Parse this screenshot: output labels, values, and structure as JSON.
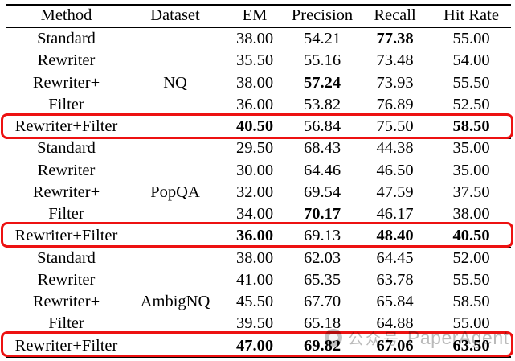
{
  "table": {
    "columns": [
      "Method",
      "Dataset",
      "EM",
      "Precision",
      "Recall",
      "Hit Rate"
    ],
    "highlight_color": "#ed1111",
    "rule_color": "#000000",
    "groups": [
      {
        "dataset": "NQ",
        "rows": [
          {
            "method": "Standard",
            "dataset_label": "",
            "em": "38.00",
            "precision": "54.21",
            "recall": "77.38",
            "hit_rate": "55.00",
            "bold": [
              "recall"
            ],
            "highlighted": false
          },
          {
            "method": "Rewriter",
            "dataset_label": "",
            "em": "35.50",
            "precision": "55.16",
            "recall": "73.48",
            "hit_rate": "54.00",
            "bold": [],
            "highlighted": false
          },
          {
            "method": "Rewriter+",
            "dataset_label": "NQ",
            "em": "38.00",
            "precision": "57.24",
            "recall": "73.93",
            "hit_rate": "55.50",
            "bold": [
              "precision"
            ],
            "highlighted": false
          },
          {
            "method": "Filter",
            "dataset_label": "",
            "em": "36.00",
            "precision": "53.82",
            "recall": "76.89",
            "hit_rate": "52.50",
            "bold": [],
            "highlighted": false
          },
          {
            "method": "Rewriter+Filter",
            "dataset_label": "",
            "em": "40.50",
            "precision": "56.84",
            "recall": "75.50",
            "hit_rate": "58.50",
            "bold": [
              "em",
              "hit_rate"
            ],
            "highlighted": true
          }
        ]
      },
      {
        "dataset": "PopQA",
        "rows": [
          {
            "method": "Standard",
            "dataset_label": "",
            "em": "29.50",
            "precision": "68.43",
            "recall": "44.38",
            "hit_rate": "35.00",
            "bold": [],
            "highlighted": false
          },
          {
            "method": "Rewriter",
            "dataset_label": "",
            "em": "30.00",
            "precision": "64.46",
            "recall": "46.50",
            "hit_rate": "35.00",
            "bold": [],
            "highlighted": false
          },
          {
            "method": "Rewriter+",
            "dataset_label": "PopQA",
            "em": "32.00",
            "precision": "69.54",
            "recall": "47.59",
            "hit_rate": "37.50",
            "bold": [],
            "highlighted": false
          },
          {
            "method": "Filter",
            "dataset_label": "",
            "em": "34.00",
            "precision": "70.17",
            "recall": "46.17",
            "hit_rate": "38.00",
            "bold": [
              "precision"
            ],
            "highlighted": false
          },
          {
            "method": "Rewriter+Filter",
            "dataset_label": "",
            "em": "36.00",
            "precision": "69.13",
            "recall": "48.40",
            "hit_rate": "40.50",
            "bold": [
              "em",
              "recall",
              "hit_rate"
            ],
            "highlighted": true
          }
        ]
      },
      {
        "dataset": "AmbigNQ",
        "rows": [
          {
            "method": "Standard",
            "dataset_label": "",
            "em": "38.00",
            "precision": "62.03",
            "recall": "64.45",
            "hit_rate": "52.00",
            "bold": [],
            "highlighted": false
          },
          {
            "method": "Rewriter",
            "dataset_label": "",
            "em": "41.00",
            "precision": "65.35",
            "recall": "63.78",
            "hit_rate": "55.50",
            "bold": [],
            "highlighted": false
          },
          {
            "method": "Rewriter+",
            "dataset_label": "AmbigNQ",
            "em": "45.50",
            "precision": "67.70",
            "recall": "65.84",
            "hit_rate": "58.50",
            "bold": [],
            "highlighted": false
          },
          {
            "method": "Filter",
            "dataset_label": "",
            "em": "39.50",
            "precision": "65.18",
            "recall": "64.88",
            "hit_rate": "55.00",
            "bold": [],
            "highlighted": false
          },
          {
            "method": "Rewriter+Filter",
            "dataset_label": "",
            "em": "47.00",
            "precision": "69.82",
            "recall": "67.06",
            "hit_rate": "63.50",
            "bold": [
              "em",
              "precision",
              "recall",
              "hit_rate"
            ],
            "highlighted": true
          }
        ]
      }
    ]
  },
  "watermark": {
    "icon": "wechat-logo-icon",
    "cjk_text": "公众号",
    "brand_text": "PaperAgent",
    "color": "#b9b9b9"
  }
}
